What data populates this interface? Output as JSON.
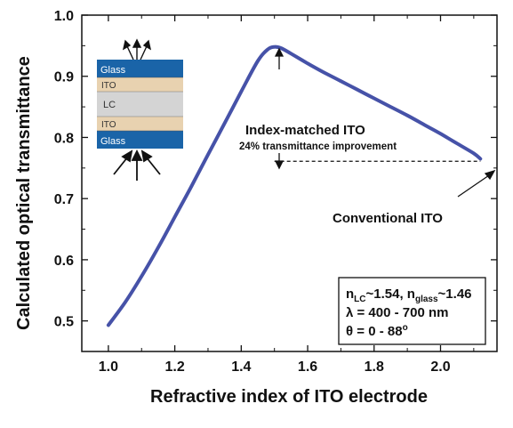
{
  "chart_data": {
    "type": "line",
    "xlabel": "Refractive index of ITO electrode",
    "ylabel": "Calculated optical transmittance",
    "xlim": [
      0.92,
      2.17
    ],
    "ylim": [
      0.45,
      1.0
    ],
    "xticks": [
      "1.0",
      "1.2",
      "1.4",
      "1.6",
      "1.8",
      "2.0"
    ],
    "yticks": [
      "0.5",
      "0.6",
      "0.7",
      "0.8",
      "0.9",
      "1.0"
    ],
    "grid": false,
    "line_color": "#4652a8",
    "series": [
      {
        "x": [
          1.0,
          1.05,
          1.1,
          1.15,
          1.2,
          1.25,
          1.3,
          1.35,
          1.4,
          1.45,
          1.48,
          1.5,
          1.52,
          1.55,
          1.6,
          1.65,
          1.7,
          1.75,
          1.8,
          1.85,
          1.9,
          1.95,
          2.0,
          2.05,
          2.1,
          2.12
        ],
        "y": [
          0.493,
          0.53,
          0.573,
          0.62,
          0.67,
          0.72,
          0.772,
          0.823,
          0.875,
          0.925,
          0.944,
          0.948,
          0.946,
          0.937,
          0.921,
          0.906,
          0.892,
          0.878,
          0.864,
          0.85,
          0.836,
          0.821,
          0.806,
          0.79,
          0.774,
          0.765
        ]
      }
    ],
    "reference_line": {
      "x": [
        1.5,
        2.12
      ],
      "y": 0.761,
      "style": "dashed"
    },
    "annotations": {
      "index_matched": "Index-matched ITO",
      "improvement": "24% transmittance improvement",
      "conventional": "Conventional ITO",
      "info_line1_a": "n",
      "info_line1_sub1": "LC",
      "info_line1_b": "~1.54, n",
      "info_line1_sub2": "glass",
      "info_line1_c": "~1.46",
      "info_line2": "λ = 400 - 700 nm",
      "info_line3_a": "θ = 0 - 88",
      "info_line3_sup": "o"
    },
    "inset": {
      "layers": [
        "Glass",
        "ITO",
        "LC",
        "ITO",
        "Glass"
      ],
      "colors": {
        "glass": "#1a64a8",
        "ito": "#e8d2b0",
        "lc": "#d4d4d4"
      }
    }
  }
}
